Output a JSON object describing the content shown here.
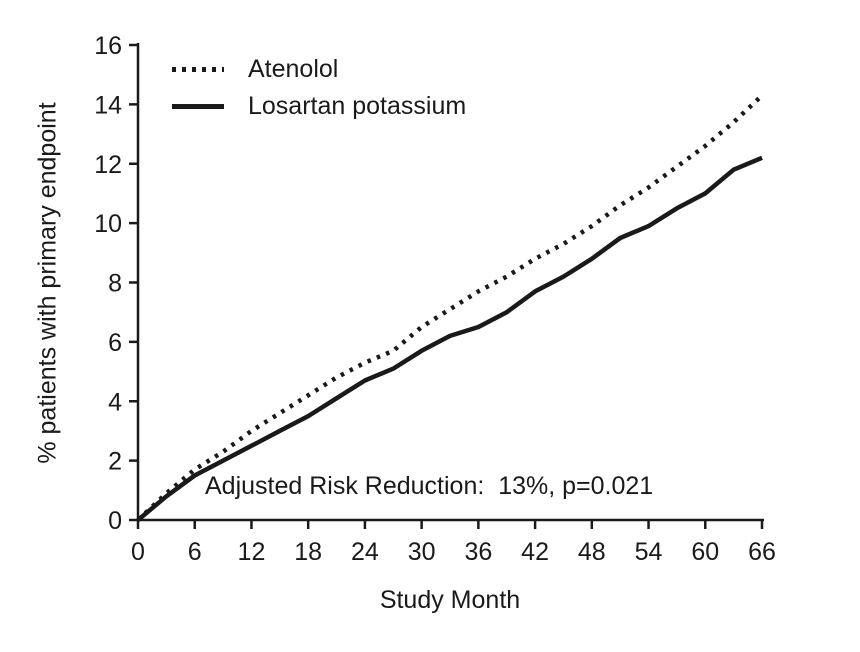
{
  "chart_data": {
    "type": "line",
    "title": "",
    "xlabel": "Study Month",
    "ylabel": "% patients with primary endpoint",
    "xlim": [
      0,
      66
    ],
    "ylim": [
      0,
      16
    ],
    "xticks": [
      0,
      6,
      12,
      18,
      24,
      30,
      36,
      42,
      48,
      54,
      60,
      66
    ],
    "yticks": [
      0,
      2,
      4,
      6,
      8,
      10,
      12,
      14,
      16
    ],
    "grid": false,
    "legend_position": "top-left",
    "annotation": "Adjusted Risk Reduction:  13%, p=0.021",
    "x": [
      0,
      3,
      6,
      9,
      12,
      15,
      18,
      21,
      24,
      27,
      30,
      33,
      36,
      39,
      42,
      45,
      48,
      51,
      54,
      57,
      60,
      63,
      66
    ],
    "series": [
      {
        "name": "Atenolol",
        "style": "dotted",
        "color": "#1a1a1a",
        "values": [
          0,
          0.9,
          1.7,
          2.3,
          3.0,
          3.6,
          4.2,
          4.8,
          5.3,
          5.7,
          6.5,
          7.1,
          7.7,
          8.2,
          8.8,
          9.3,
          9.9,
          10.6,
          11.2,
          11.9,
          12.6,
          13.4,
          14.3
        ]
      },
      {
        "name": "Losartan potassium",
        "style": "solid",
        "color": "#1a1a1a",
        "values": [
          0,
          0.8,
          1.5,
          2.0,
          2.5,
          3.0,
          3.5,
          4.1,
          4.7,
          5.1,
          5.7,
          6.2,
          6.5,
          7.0,
          7.7,
          8.2,
          8.8,
          9.5,
          9.9,
          10.5,
          11.0,
          11.8,
          12.2
        ]
      }
    ]
  }
}
